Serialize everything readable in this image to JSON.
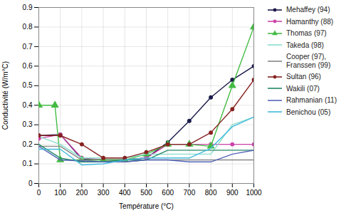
{
  "chart_data": {
    "type": "line",
    "xlabel": "Température (°C)",
    "ylabel": "Conductivité (W/m°C)",
    "xlim": [
      0,
      1000
    ],
    "ylim": [
      0,
      0.9
    ],
    "xticks": [
      0,
      100,
      200,
      300,
      400,
      500,
      600,
      700,
      800,
      900,
      1000
    ],
    "yticks": [
      0,
      0.1,
      0.2,
      0.3,
      0.4,
      0.5,
      0.6,
      0.7,
      0.8,
      0.9
    ],
    "grid": true,
    "legend": "right",
    "series": [
      {
        "name": "Mehaffey (94)",
        "color": "#1a1a4a",
        "marker": "circle",
        "x": [
          0,
          100,
          200,
          300,
          400,
          500,
          600,
          700,
          800,
          900,
          1000
        ],
        "values": [
          0.245,
          0.25,
          0.125,
          0.12,
          0.12,
          0.13,
          0.21,
          0.32,
          0.44,
          0.53,
          0.6
        ]
      },
      {
        "name": "Hamanthy (88)",
        "color": "#cc44aa",
        "marker": "circle",
        "x": [
          0,
          100,
          200,
          300,
          400,
          500,
          600,
          700,
          800,
          900,
          1000
        ],
        "values": [
          0.23,
          0.25,
          0.13,
          0.12,
          0.12,
          0.13,
          0.2,
          0.2,
          0.2,
          0.2,
          0.2
        ]
      },
      {
        "name": "Thomas (97)",
        "color": "#44bb44",
        "marker": "triangle",
        "x": [
          0,
          75,
          100,
          200,
          300,
          400,
          500,
          600,
          700,
          800,
          900,
          1000
        ],
        "values": [
          0.4,
          0.4,
          0.12,
          0.12,
          0.12,
          0.12,
          0.15,
          0.2,
          0.2,
          0.19,
          0.5,
          0.8
        ]
      },
      {
        "name": "Takeda (98)",
        "color": "#88ddcc",
        "marker": "none",
        "x": [
          0,
          100,
          200,
          300,
          400,
          500,
          600,
          700,
          800,
          900,
          1000
        ],
        "values": [
          0.24,
          0.2,
          0.13,
          0.13,
          0.13,
          0.15,
          0.15,
          0.15,
          0.15,
          0.3,
          0.34
        ]
      },
      {
        "name": "Cooper (97),\nFranssen (99)",
        "color": "#888888",
        "marker": "none",
        "x": [
          0,
          100,
          200,
          300,
          400,
          500,
          600,
          700,
          800,
          1000
        ],
        "values": [
          0.19,
          0.19,
          0.12,
          0.11,
          0.11,
          0.12,
          0.12,
          0.12,
          0.12,
          0.12
        ]
      },
      {
        "name": "Sultan (96)",
        "color": "#882222",
        "marker": "circle",
        "x": [
          0,
          100,
          200,
          300,
          400,
          500,
          600,
          700,
          800,
          900,
          1000
        ],
        "values": [
          0.245,
          0.245,
          0.2,
          0.13,
          0.13,
          0.16,
          0.2,
          0.2,
          0.26,
          0.38,
          0.53
        ]
      },
      {
        "name": "Wakili (07)",
        "color": "#228866",
        "marker": "none",
        "x": [
          0,
          100,
          200,
          300,
          400,
          500,
          600,
          700,
          800,
          900,
          1000
        ],
        "values": [
          0.2,
          0.13,
          0.11,
          0.11,
          0.12,
          0.12,
          0.17,
          0.17,
          0.17,
          0.17,
          0.17
        ]
      },
      {
        "name": "Rahmanian (11)",
        "color": "#5566bb",
        "marker": "none",
        "x": [
          0,
          100,
          300,
          400,
          500,
          600,
          700,
          800,
          900,
          1000
        ],
        "values": [
          0.19,
          0.12,
          0.11,
          0.11,
          0.12,
          0.12,
          0.11,
          0.11,
          0.15,
          0.17
        ]
      },
      {
        "name": "Benichou (05)",
        "color": "#44bbdd",
        "marker": "none",
        "x": [
          0,
          100,
          200,
          300,
          400,
          500,
          600,
          700,
          800,
          900,
          1000
        ],
        "values": [
          0.175,
          0.175,
          0.095,
          0.1,
          0.12,
          0.13,
          0.13,
          0.13,
          0.18,
          0.29,
          0.34
        ]
      }
    ]
  }
}
